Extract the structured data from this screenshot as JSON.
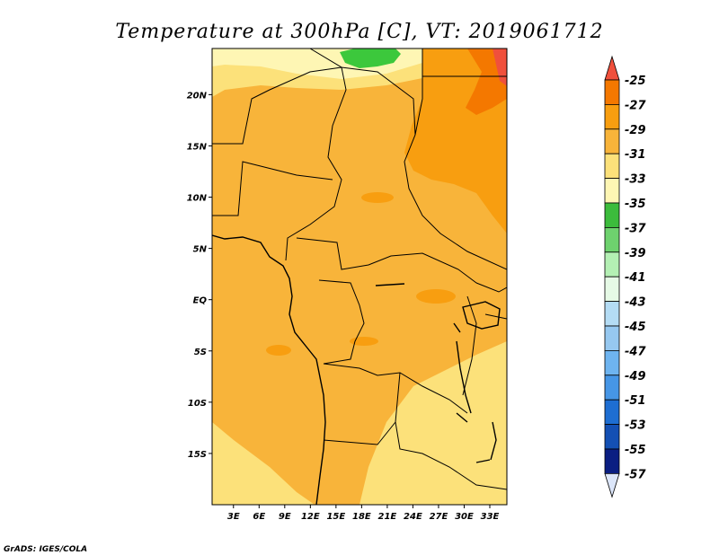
{
  "title": "Temperature at 300hPa [C], VT: 2019061712",
  "credit": "GrADS: IGES/COLA",
  "map": {
    "lat_ticks": [
      {
        "label": "20N",
        "value": 20
      },
      {
        "label": "15N",
        "value": 15
      },
      {
        "label": "10N",
        "value": 10
      },
      {
        "label": "5N",
        "value": 5
      },
      {
        "label": "EQ",
        "value": 0
      },
      {
        "label": "5S",
        "value": -5
      },
      {
        "label": "10S",
        "value": -10
      },
      {
        "label": "15S",
        "value": -15
      }
    ],
    "lon_ticks": [
      {
        "label": "3E",
        "value": 3
      },
      {
        "label": "6E",
        "value": 6
      },
      {
        "label": "9E",
        "value": 9
      },
      {
        "label": "12E",
        "value": 12
      },
      {
        "label": "15E",
        "value": 15
      },
      {
        "label": "18E",
        "value": 18
      },
      {
        "label": "21E",
        "value": 21
      },
      {
        "label": "24E",
        "value": 24
      },
      {
        "label": "27E",
        "value": 27
      },
      {
        "label": "30E",
        "value": 30
      },
      {
        "label": "33E",
        "value": 33
      }
    ],
    "lon_range": [
      0.5,
      35
    ],
    "lat_range": [
      -20,
      24.5
    ]
  },
  "colorbar": {
    "labels": [
      "-25",
      "-27",
      "-29",
      "-31",
      "-33",
      "-35",
      "-37",
      "-39",
      "-41",
      "-43",
      "-45",
      "-47",
      "-49",
      "-51",
      "-53",
      "-55",
      "-57"
    ],
    "colors": [
      "#f0503c",
      "#f47800",
      "#f89e10",
      "#f8b43a",
      "#fce17a",
      "#fef6b4",
      "#3cbc3c",
      "#6ed26e",
      "#b4f0b4",
      "#e6fae6",
      "#b4dcf4",
      "#96c8f0",
      "#6eb4f0",
      "#4696e6",
      "#1e6ed2",
      "#1450b4",
      "#0a1e82",
      "#dce6fa"
    ]
  },
  "palette": {
    "c27": "#f89e10",
    "c29": "#f8b43a",
    "c31": "#fad264",
    "c33": "#fce17a",
    "c35": "#fef6b4",
    "c25": "#f47800",
    "c23": "#f0503c",
    "c37": "#3cc83c"
  }
}
